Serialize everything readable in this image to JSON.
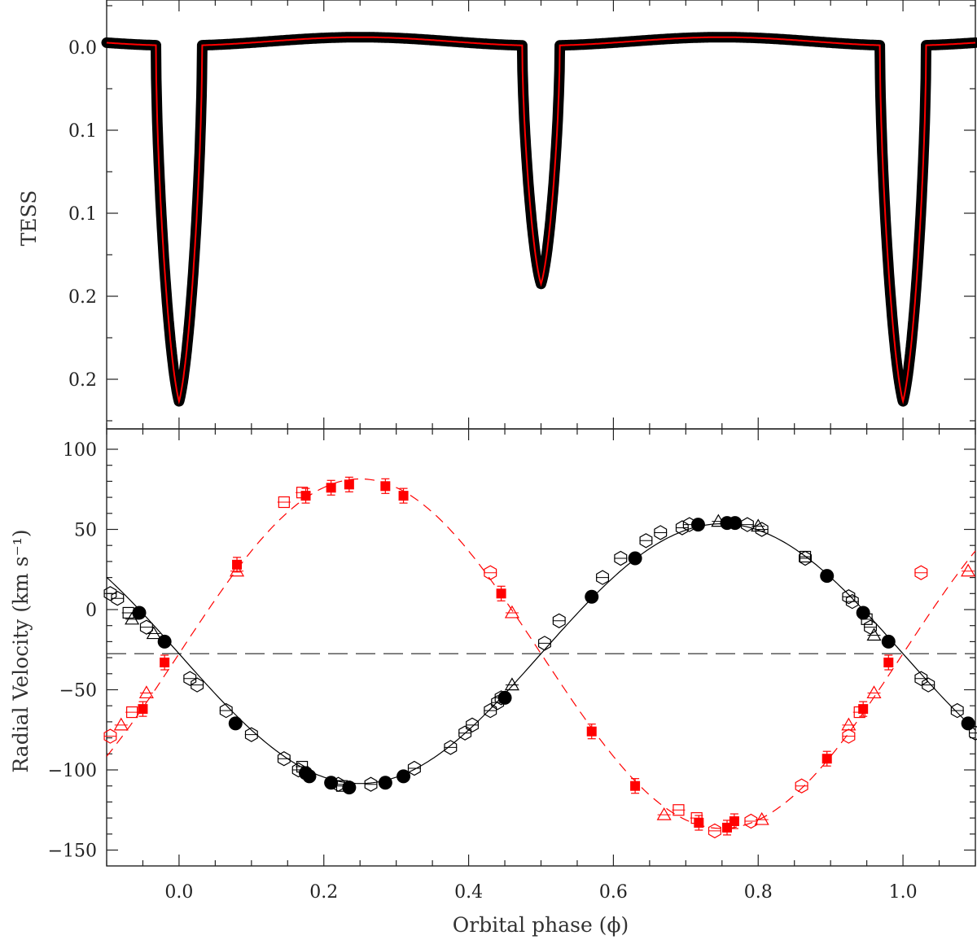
{
  "chart_data": [
    {
      "type": "line",
      "panel": "top",
      "ylabel": "TESS",
      "xlim": [
        -0.1,
        1.1
      ],
      "ylim": [
        0.0,
        0.235
      ],
      "y_inverted": true,
      "y_tick_labels": [
        "0.0",
        "0.1",
        "0.1",
        "0.2",
        "0.2"
      ],
      "grid": false,
      "colors": {
        "data": "#000000",
        "model": "#ff0000"
      },
      "series": [
        {
          "style": "black filled points (TESS photometry)",
          "x": [
            -0.1,
            -0.05,
            -0.03,
            -0.02,
            -0.01,
            0.0,
            0.01,
            0.02,
            0.03,
            0.05,
            0.1,
            0.2,
            0.25,
            0.3,
            0.4,
            0.46,
            0.48,
            0.49,
            0.5,
            0.51,
            0.52,
            0.54,
            0.6,
            0.7,
            0.75,
            0.8,
            0.9,
            0.96,
            0.97,
            0.98,
            0.99,
            1.0,
            1.01,
            1.02,
            1.03,
            1.05,
            1.1
          ],
          "values": [
            0.0,
            0.0,
            0.0,
            0.025,
            0.13,
            0.212,
            0.13,
            0.025,
            0.0,
            -0.001,
            -0.002,
            -0.004,
            -0.005,
            -0.004,
            -0.002,
            0.0,
            0.01,
            0.07,
            0.142,
            0.07,
            0.01,
            0.0,
            -0.002,
            -0.004,
            -0.005,
            -0.004,
            -0.002,
            0.0,
            0.0,
            0.025,
            0.13,
            0.212,
            0.13,
            0.025,
            0.0,
            -0.001,
            -0.002
          ]
        }
      ]
    },
    {
      "type": "scatter",
      "panel": "bottom",
      "xlabel": "Orbital phase (ϕ)",
      "ylabel": "Radial Velocity (km s⁻¹)",
      "xlim": [
        -0.1,
        1.1
      ],
      "ylim": [
        -165,
        112
      ],
      "x_tick_labels": [
        "0.0",
        "0.2",
        "0.4",
        "0.6",
        "0.8",
        "1.0"
      ],
      "y_tick_labels": [
        "100",
        "50",
        "0",
        "−50",
        "−100",
        "−150"
      ],
      "systemic_velocity": -27.5,
      "grid": false,
      "colors": {
        "primary": "#000000",
        "secondary": "#ff0000"
      },
      "primary_model": {
        "K": 81,
        "gamma": -27.5,
        "style": "solid black"
      },
      "secondary_model": {
        "K": 109,
        "gamma": -27.5,
        "style": "dashed red"
      },
      "series": [
        {
          "marker": "filled-circle",
          "color": "#000000",
          "x": [
            -0.055,
            -0.02,
            0.078,
            0.175,
            0.18,
            0.21,
            0.235,
            0.285,
            0.31,
            0.45,
            0.57,
            0.63,
            0.717,
            0.757,
            0.768,
            0.895,
            0.945,
            0.98,
            1.09
          ],
          "values": [
            -2,
            -20,
            -71,
            -102,
            -104,
            -108,
            -111,
            -108,
            -104,
            -55,
            8,
            32,
            53,
            54,
            54,
            21,
            -2,
            -20,
            -71
          ]
        },
        {
          "marker": "open-hexagon",
          "color": "#000000",
          "x": [
            -0.095,
            -0.085,
            -0.045,
            0.015,
            0.025,
            0.065,
            0.1,
            0.145,
            0.165,
            0.22,
            0.265,
            0.325,
            0.375,
            0.395,
            0.405,
            0.43,
            0.44,
            0.445,
            0.505,
            0.525,
            0.585,
            0.61,
            0.645,
            0.665,
            0.695,
            0.705,
            0.785,
            0.805,
            0.865,
            0.925,
            0.93,
            0.955,
            1.025,
            1.035,
            1.075,
            1.1
          ],
          "values": [
            10,
            7,
            -11,
            -43,
            -47,
            -63,
            -78,
            -93,
            -100,
            -109,
            -109,
            -99,
            -86,
            -77,
            -72,
            -63,
            -58,
            -55,
            -21,
            -7,
            20,
            32,
            43,
            48,
            51,
            53,
            53,
            50,
            32,
            8,
            5,
            -11,
            -43,
            -47,
            -63,
            -77
          ]
        },
        {
          "marker": "open-triangle",
          "color": "#000000",
          "x": [
            -0.065,
            -0.035,
            0.46,
            0.745,
            0.8,
            0.96
          ],
          "values": [
            -6,
            -15,
            -47,
            55,
            52,
            -16
          ]
        },
        {
          "marker": "open-square",
          "color": "#000000",
          "x": [
            -0.07,
            0.17,
            0.225,
            0.865,
            0.95
          ],
          "values": [
            -2,
            -98,
            -110,
            33,
            -6
          ]
        },
        {
          "marker": "filled-square",
          "color": "#ff0000",
          "x": [
            -0.05,
            -0.02,
            0.08,
            0.175,
            0.21,
            0.235,
            0.285,
            0.31,
            0.445,
            0.57,
            0.63,
            0.718,
            0.757,
            0.767,
            0.895,
            0.945,
            0.98
          ],
          "values": [
            -62,
            -33,
            28,
            71,
            76,
            78,
            77,
            71,
            10,
            -76,
            -110,
            -133,
            -136,
            -132,
            -93,
            -62,
            -33
          ]
        },
        {
          "marker": "open-hexagon",
          "color": "#ff0000",
          "x": [
            -0.095,
            0.43,
            0.74,
            0.79,
            0.86,
            0.925,
            1.025
          ],
          "values": [
            -79,
            23,
            -138,
            -132,
            -110,
            -79,
            23
          ]
        },
        {
          "marker": "open-triangle",
          "color": "#ff0000",
          "x": [
            -0.08,
            -0.045,
            0.08,
            0.46,
            0.67,
            0.805,
            0.925,
            0.96,
            1.09
          ],
          "values": [
            -72,
            -52,
            24,
            -2,
            -128,
            -131,
            -72,
            -52,
            24
          ]
        },
        {
          "marker": "open-square",
          "color": "#ff0000",
          "x": [
            -0.065,
            0.145,
            0.17,
            0.69,
            0.715,
            0.94
          ],
          "values": [
            -64,
            67,
            73,
            -125,
            -130,
            -64
          ]
        }
      ]
    }
  ]
}
